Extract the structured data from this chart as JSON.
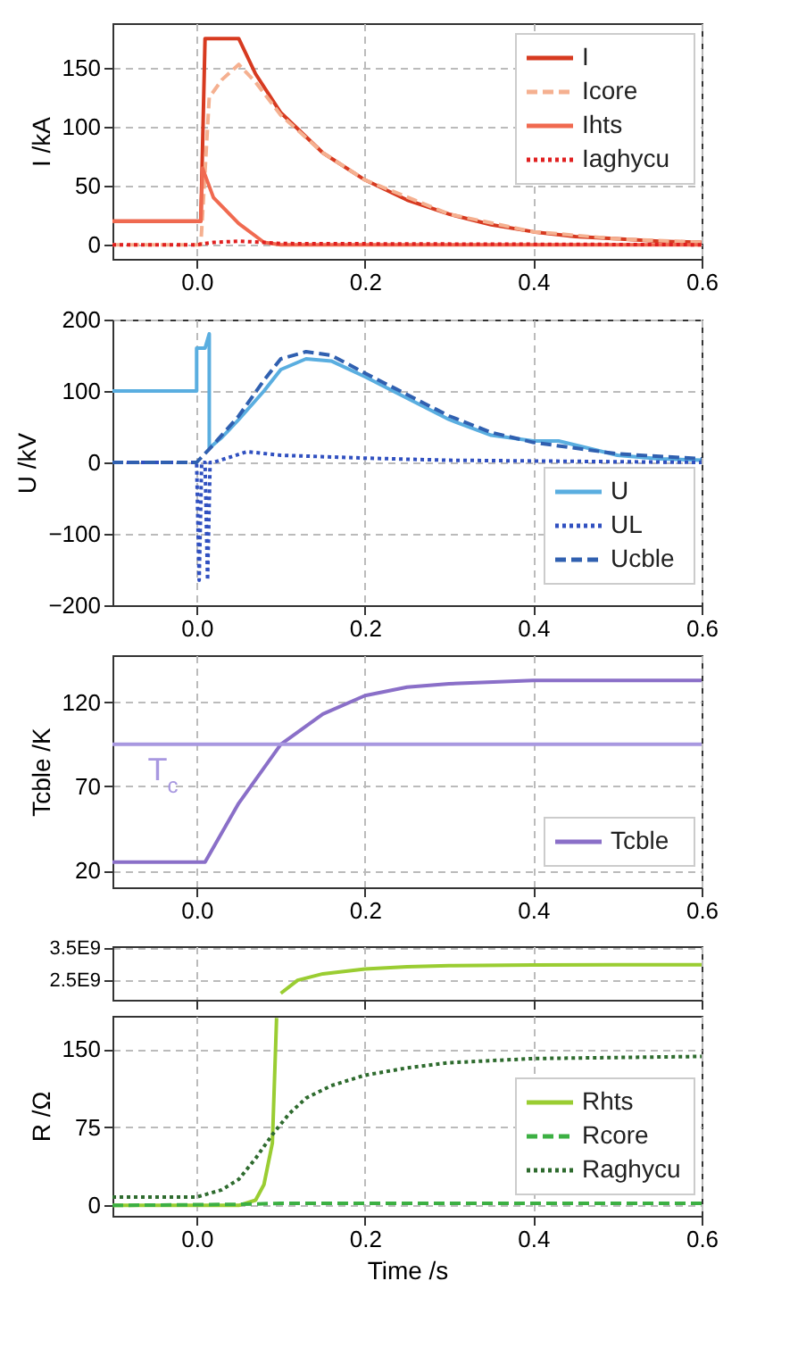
{
  "chart_data": [
    {
      "type": "line",
      "ylabel": "I /kA",
      "xlim": [
        -0.1,
        0.6
      ],
      "xticks": [
        {
          "value": 0,
          "label": "0.0"
        },
        0.2,
        0.4,
        0.6
      ],
      "ylim": [
        -12,
        188
      ],
      "yticks": [
        0,
        50,
        100,
        150
      ],
      "grid": true,
      "legend": "top right",
      "marker": "none",
      "series": [
        {
          "name": "I",
          "color": "#d73a20",
          "line_style": "solid",
          "x": [
            -0.1,
            0.005,
            0.01,
            0.05,
            0.07,
            0.1,
            0.15,
            0.2,
            0.25,
            0.3,
            0.35,
            0.4,
            0.45,
            0.5,
            0.55,
            0.6
          ],
          "values": [
            20,
            20,
            175,
            175,
            145,
            112,
            78,
            55,
            38,
            26,
            17,
            11,
            7,
            5,
            3,
            2
          ]
        },
        {
          "name": "Icore",
          "color": "#f5b090",
          "line_style": "dashed",
          "x": [
            -0.1,
            0.005,
            0.015,
            0.03,
            0.05,
            0.07,
            0.1,
            0.15,
            0.2,
            0.3,
            0.4,
            0.5,
            0.6
          ],
          "values": [
            0,
            0,
            125,
            140,
            153,
            138,
            110,
            78,
            55,
            26,
            11,
            5,
            2
          ]
        },
        {
          "name": "Ihts",
          "color": "#f06a50",
          "line_style": "solid",
          "x": [
            -0.1,
            0.005,
            0.007,
            0.02,
            0.05,
            0.08,
            0.1,
            0.6
          ],
          "values": [
            20,
            20,
            65,
            40,
            18,
            2,
            0,
            0
          ]
        },
        {
          "name": "Iaghycu",
          "color": "#e02020",
          "line_style": "dotted",
          "x": [
            -0.1,
            0.0,
            0.02,
            0.05,
            0.08,
            0.1,
            0.6
          ],
          "values": [
            0,
            0,
            2,
            3,
            2,
            1,
            0
          ]
        }
      ]
    },
    {
      "type": "line",
      "ylabel": "U /kV",
      "xlim": [
        -0.1,
        0.6
      ],
      "xticks": [
        {
          "value": 0,
          "label": "0.0"
        },
        0.2,
        0.4,
        0.6
      ],
      "ylim": [
        -200,
        200
      ],
      "yticks": [
        -200,
        -100,
        0,
        100,
        200
      ],
      "grid": true,
      "legend": "bottom right",
      "marker": "none",
      "series": [
        {
          "name": "U",
          "color": "#5aaee0",
          "line_style": "solid",
          "x": [
            -0.1,
            0.0,
            0.0,
            0.01,
            0.015,
            0.015,
            0.03,
            0.05,
            0.08,
            0.1,
            0.13,
            0.16,
            0.2,
            0.25,
            0.3,
            0.35,
            0.4,
            0.43,
            0.5,
            0.55,
            0.6
          ],
          "values": [
            100,
            100,
            160,
            160,
            180,
            20,
            35,
            60,
            100,
            130,
            145,
            142,
            120,
            90,
            60,
            38,
            30,
            30,
            10,
            5,
            3
          ]
        },
        {
          "name": "UL",
          "color": "#3050c0",
          "line_style": "dotted",
          "x": [
            -0.1,
            0.0,
            0.003,
            0.006,
            0.01,
            0.013,
            0.016,
            0.02,
            0.06,
            0.1,
            0.2,
            0.3,
            0.4,
            0.5,
            0.6
          ],
          "values": [
            0,
            0,
            -165,
            0,
            0,
            -165,
            0,
            0,
            15,
            10,
            6,
            3,
            2,
            1,
            0
          ]
        },
        {
          "name": "Ucble",
          "color": "#3060b0",
          "line_style": "dashed",
          "x": [
            -0.1,
            0.0,
            0.02,
            0.05,
            0.08,
            0.1,
            0.13,
            0.16,
            0.2,
            0.25,
            0.3,
            0.35,
            0.4,
            0.5,
            0.6
          ],
          "values": [
            0,
            0,
            25,
            65,
            115,
            145,
            155,
            150,
            125,
            95,
            65,
            42,
            28,
            12,
            5
          ]
        }
      ]
    },
    {
      "type": "line",
      "ylabel": "Tcble /K",
      "xlim": [
        -0.1,
        0.6
      ],
      "xticks": [
        {
          "value": 0,
          "label": "0.0"
        },
        0.2,
        0.4,
        0.6
      ],
      "ylim": [
        10,
        148
      ],
      "yticks": [
        20,
        70,
        120
      ],
      "grid": true,
      "legend": "bottom right",
      "marker": "none",
      "ref_lines": [
        {
          "axis": "y",
          "value": 95,
          "label": "T$_{c}$",
          "color": "#a898e0"
        }
      ],
      "series": [
        {
          "name": "Tcble",
          "color": "#8a6fc8",
          "line_style": "solid",
          "x": [
            -0.1,
            0.01,
            0.05,
            0.1,
            0.15,
            0.2,
            0.25,
            0.3,
            0.4,
            0.5,
            0.6
          ],
          "values": [
            25,
            25,
            60,
            95,
            113,
            124,
            129,
            131,
            133,
            133,
            133
          ]
        }
      ]
    },
    {
      "type": "line",
      "xlim": [
        -0.1,
        0.6
      ],
      "xticks": [
        {
          "value": 0,
          "label": null
        },
        {
          "value": 0.2,
          "label": null
        },
        {
          "value": 0.4,
          "label": null
        },
        {
          "value": 0.6,
          "label": null
        }
      ],
      "ylim": [
        1900000000.0,
        3550000000.0
      ],
      "yticks": [
        {
          "value": 2500000000.0,
          "label": "2.5E9"
        },
        {
          "value": 3500000000.0,
          "label": "3.5E9"
        }
      ],
      "grid": true,
      "tick_labels": "y",
      "marker": "none",
      "series": [
        {
          "color": "#9acd32",
          "line_style": "solid",
          "x": [
            0.1,
            0.12,
            0.15,
            0.2,
            0.25,
            0.3,
            0.4,
            0.5,
            0.6
          ],
          "values": [
            2100000000.0,
            2500000000.0,
            2700000000.0,
            2850000000.0,
            2920000000.0,
            2950000000.0,
            2970000000.0,
            2980000000.0,
            2980000000.0
          ]
        }
      ]
    },
    {
      "type": "line",
      "ylabel": "R /Ω",
      "xlabel": "Time /s",
      "xlim": [
        -0.1,
        0.6
      ],
      "xticks": [
        {
          "value": 0,
          "label": "0.0"
        },
        0.2,
        0.4,
        0.6
      ],
      "ylim": [
        -10,
        182
      ],
      "yticks": [
        0,
        75,
        150
      ],
      "grid": true,
      "legend": "bottom right",
      "marker": "none",
      "series": [
        {
          "name": "Rhts",
          "color": "#9acd32",
          "line_style": "solid",
          "x": [
            -0.1,
            0.05,
            0.07,
            0.08,
            0.09,
            0.095
          ],
          "values": [
            0,
            0,
            5,
            20,
            60,
            180
          ]
        },
        {
          "name": "Rcore",
          "color": "#3cb043",
          "line_style": "dashed",
          "x": [
            -0.1,
            0.05,
            0.1,
            0.6
          ],
          "values": [
            0,
            1,
            2,
            2
          ]
        },
        {
          "name": "Raghycu",
          "color": "#2e6b2e",
          "line_style": "dotted",
          "x": [
            -0.1,
            0.0,
            0.03,
            0.05,
            0.07,
            0.09,
            0.11,
            0.13,
            0.16,
            0.2,
            0.25,
            0.3,
            0.4,
            0.5,
            0.6
          ],
          "values": [
            8,
            8,
            15,
            25,
            45,
            68,
            88,
            103,
            115,
            125,
            132,
            137,
            141,
            142,
            143
          ]
        }
      ]
    }
  ]
}
